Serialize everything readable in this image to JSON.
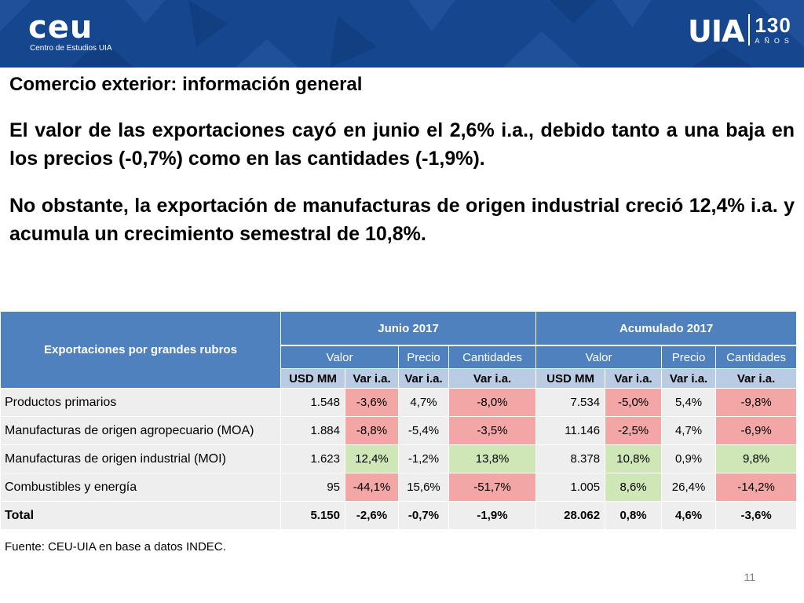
{
  "header": {
    "logo_left_big": "ceu",
    "logo_left_small": "Centro de Estudios UIA",
    "logo_right_mark": "UIA",
    "logo_right_num": "130",
    "logo_right_anos": "AÑOS"
  },
  "slide": {
    "subtitle": "Comercio exterior: información general",
    "para1": "El valor de las exportaciones cayó en junio el 2,6% i.a., debido tanto a una baja en los precios (-0,7%) como en las cantidades (-1,9%).",
    "para2": "No obstante, la exportación de  manufacturas de origen industrial creció 12,4% i.a. y acumula un crecimiento semestral de 10,8%."
  },
  "table": {
    "corner_header": "Exportaciones por grandes rubros",
    "group_junio": "Junio 2017",
    "group_acum": "Acumulado 2017",
    "sub_valor": "Valor",
    "sub_precio": "Precio",
    "sub_cantidades": "Cantidades",
    "unit_usd": "USD MM",
    "unit_var": "Var i.a.",
    "rows": [
      {
        "name": "Productos primarios",
        "j_usd": "1.548",
        "j_var": "-3,6%",
        "j_precio": "4,7%",
        "j_cant": "-8,0%",
        "a_usd": "7.534",
        "a_var": "-5,0%",
        "a_precio": "5,4%",
        "a_cant": "-9,8%"
      },
      {
        "name": "Manufacturas de origen agropecuario (MOA)",
        "j_usd": "1.884",
        "j_var": "-8,8%",
        "j_precio": "-5,4%",
        "j_cant": "-3,5%",
        "a_usd": "11.146",
        "a_var": "-2,5%",
        "a_precio": "4,7%",
        "a_cant": "-6,9%"
      },
      {
        "name": "Manufacturas de origen industrial (MOI)",
        "j_usd": "1.623",
        "j_var": "12,4%",
        "j_precio": "-1,2%",
        "j_cant": "13,8%",
        "a_usd": "8.378",
        "a_var": "10,8%",
        "a_precio": "0,9%",
        "a_cant": "9,8%"
      },
      {
        "name": "Combustibles y energía",
        "j_usd": "95",
        "j_var": "-44,1%",
        "j_precio": "15,6%",
        "j_cant": "-51,7%",
        "a_usd": "1.005",
        "a_var": "8,6%",
        "a_precio": "26,4%",
        "a_cant": "-14,2%"
      },
      {
        "name": "Total",
        "j_usd": "5.150",
        "j_var": "-2,6%",
        "j_precio": "-0,7%",
        "j_cant": "-1,9%",
        "a_usd": "28.062",
        "a_var": "0,8%",
        "a_precio": "4,6%",
        "a_cant": "-3,6%"
      }
    ],
    "colors": {
      "negative": "#f3a6a6",
      "positive": "#cfe6b6",
      "header": "#4e81bd",
      "subheader": "#b9cce4",
      "row": "#eeeeee"
    }
  },
  "footer": {
    "source": "Fuente: CEU-UIA en base a datos INDEC.",
    "page_number": "11"
  }
}
